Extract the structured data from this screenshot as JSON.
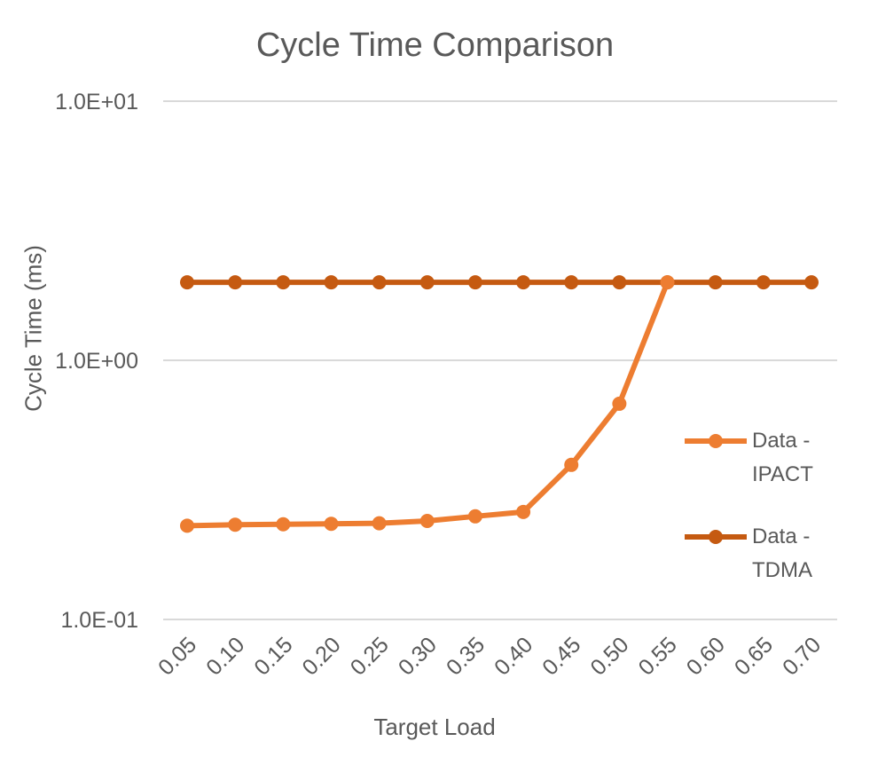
{
  "chart_data": {
    "type": "line",
    "title": "Cycle Time Comparison",
    "xlabel": "Target Load",
    "ylabel": "Cycle Time (ms)",
    "yscale": "log",
    "ylim": [
      0.1,
      10
    ],
    "yticks": [
      "1.0E+01",
      "1.0E+00",
      "1.0E-01"
    ],
    "ytick_values": [
      10,
      1,
      0.1
    ],
    "grid": true,
    "legend_position": "right",
    "categories": [
      "0.05",
      "0.10",
      "0.15",
      "0.20",
      "0.25",
      "0.30",
      "0.35",
      "0.40",
      "0.45",
      "0.50",
      "0.55",
      "0.60",
      "0.65",
      "0.70"
    ],
    "series": [
      {
        "name": "Data - IPACT",
        "legend_lines": [
          "Data -",
          "IPACT"
        ],
        "color": "#ED7D31",
        "values": [
          0.23,
          0.232,
          0.233,
          0.234,
          0.235,
          0.24,
          0.25,
          0.26,
          0.395,
          0.68,
          2.0,
          null,
          null,
          null
        ]
      },
      {
        "name": "Data - TDMA",
        "legend_lines": [
          "Data -",
          "TDMA"
        ],
        "color": "#C55A11",
        "values": [
          2.0,
          2.0,
          2.0,
          2.0,
          2.0,
          2.0,
          2.0,
          2.0,
          2.0,
          2.0,
          2.0,
          2.0,
          2.0,
          2.0
        ]
      }
    ]
  }
}
